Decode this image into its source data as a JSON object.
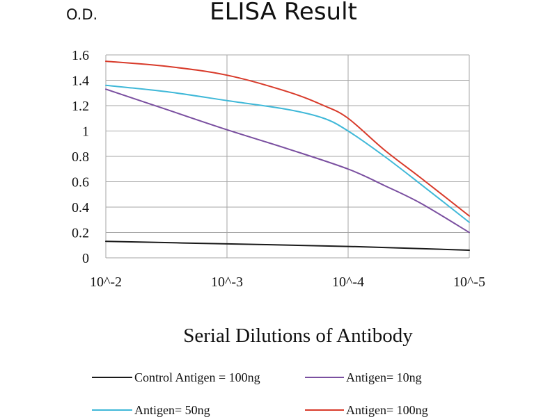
{
  "chart_data": {
    "type": "line",
    "title": "ELISA Result",
    "ylabel": "O.D.",
    "xlabel": "Serial Dilutions of Antibody",
    "categories": [
      "10^-2",
      "10^-3",
      "10^-4",
      "10^-5"
    ],
    "ylim": [
      0,
      1.6
    ],
    "yticks": [
      "0",
      "0.2",
      "0.4",
      "0.6",
      "0.8",
      "1",
      "1.2",
      "1.4",
      "1.6"
    ],
    "grid": true,
    "legend_position": "bottom",
    "series": [
      {
        "name": "Control Antigen = 100ng",
        "color": "#1a1a1a",
        "points": [
          [
            0,
            0.13
          ],
          [
            1,
            0.11
          ],
          [
            2,
            0.09
          ],
          [
            3,
            0.06
          ]
        ]
      },
      {
        "name": "Antigen= 10ng",
        "color": "#7a4fa0",
        "points": [
          [
            0,
            1.33
          ],
          [
            0.5,
            1.17
          ],
          [
            1,
            1.01
          ],
          [
            1.5,
            0.86
          ],
          [
            2,
            0.7
          ],
          [
            2.3,
            0.57
          ],
          [
            2.6,
            0.43
          ],
          [
            3,
            0.2
          ]
        ]
      },
      {
        "name": "Antigen= 50ng",
        "color": "#3fb8d8",
        "points": [
          [
            0,
            1.36
          ],
          [
            0.5,
            1.31
          ],
          [
            1,
            1.24
          ],
          [
            1.5,
            1.17
          ],
          [
            1.8,
            1.1
          ],
          [
            2,
            1.0
          ],
          [
            2.3,
            0.8
          ],
          [
            2.6,
            0.58
          ],
          [
            3,
            0.28
          ]
        ]
      },
      {
        "name": "Antigen= 100ng",
        "color": "#d83a2a",
        "points": [
          [
            0,
            1.55
          ],
          [
            0.5,
            1.51
          ],
          [
            1,
            1.44
          ],
          [
            1.5,
            1.31
          ],
          [
            1.8,
            1.2
          ],
          [
            2,
            1.1
          ],
          [
            2.3,
            0.85
          ],
          [
            2.6,
            0.63
          ],
          [
            3,
            0.33
          ]
        ]
      }
    ]
  }
}
